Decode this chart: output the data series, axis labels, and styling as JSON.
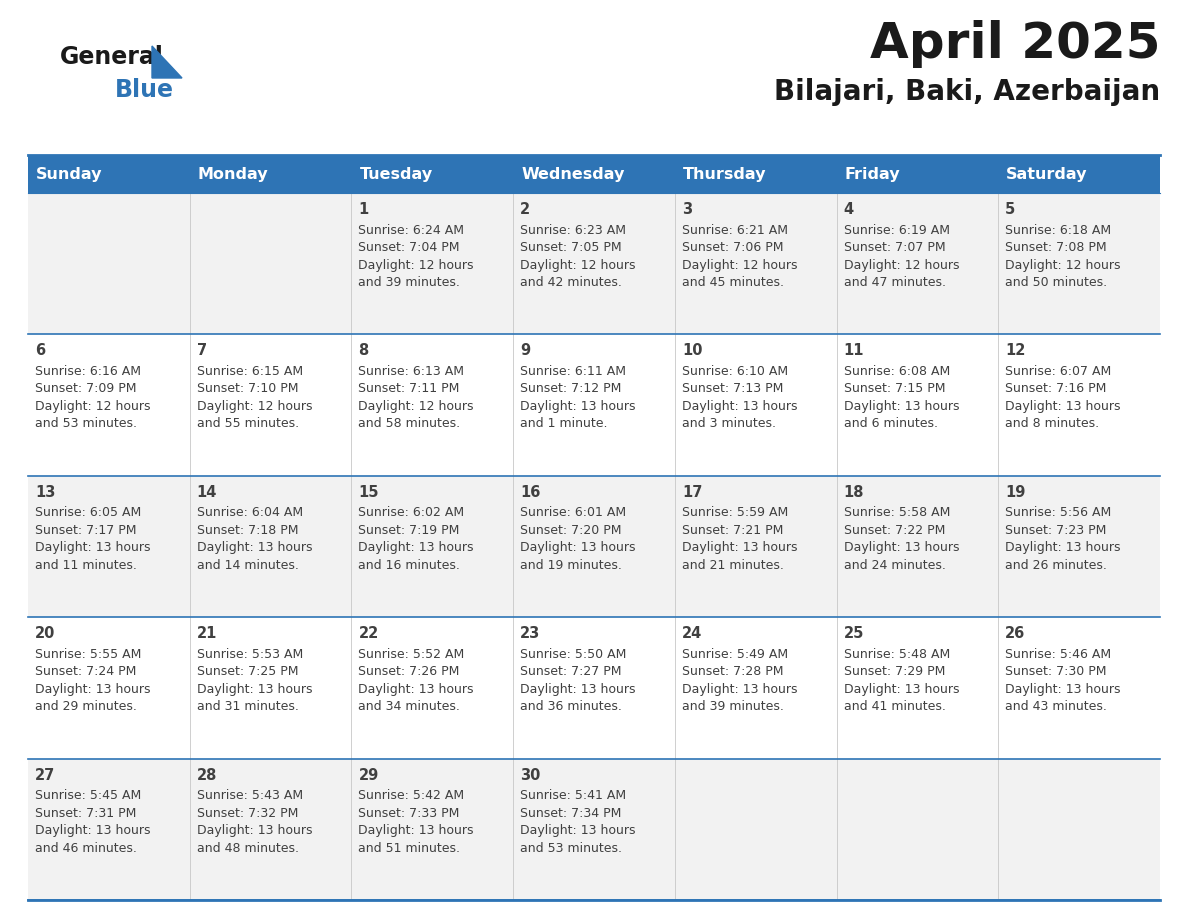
{
  "title": "April 2025",
  "subtitle": "Bilajari, Baki, Azerbaijan",
  "header_bg": "#2E74B5",
  "header_text_color": "#FFFFFF",
  "cell_bg_odd": "#F2F2F2",
  "cell_bg_even": "#FFFFFF",
  "border_color": "#2E74B5",
  "text_color": "#404040",
  "logo_general_color": "#1a1a1a",
  "logo_blue_color": "#2E74B5",
  "days_of_week": [
    "Sunday",
    "Monday",
    "Tuesday",
    "Wednesday",
    "Thursday",
    "Friday",
    "Saturday"
  ],
  "calendar_data": [
    [
      {
        "day": "",
        "sunrise": "",
        "sunset": "",
        "daylight": ""
      },
      {
        "day": "",
        "sunrise": "",
        "sunset": "",
        "daylight": ""
      },
      {
        "day": "1",
        "sunrise": "Sunrise: 6:24 AM",
        "sunset": "Sunset: 7:04 PM",
        "daylight": "Daylight: 12 hours\nand 39 minutes."
      },
      {
        "day": "2",
        "sunrise": "Sunrise: 6:23 AM",
        "sunset": "Sunset: 7:05 PM",
        "daylight": "Daylight: 12 hours\nand 42 minutes."
      },
      {
        "day": "3",
        "sunrise": "Sunrise: 6:21 AM",
        "sunset": "Sunset: 7:06 PM",
        "daylight": "Daylight: 12 hours\nand 45 minutes."
      },
      {
        "day": "4",
        "sunrise": "Sunrise: 6:19 AM",
        "sunset": "Sunset: 7:07 PM",
        "daylight": "Daylight: 12 hours\nand 47 minutes."
      },
      {
        "day": "5",
        "sunrise": "Sunrise: 6:18 AM",
        "sunset": "Sunset: 7:08 PM",
        "daylight": "Daylight: 12 hours\nand 50 minutes."
      }
    ],
    [
      {
        "day": "6",
        "sunrise": "Sunrise: 6:16 AM",
        "sunset": "Sunset: 7:09 PM",
        "daylight": "Daylight: 12 hours\nand 53 minutes."
      },
      {
        "day": "7",
        "sunrise": "Sunrise: 6:15 AM",
        "sunset": "Sunset: 7:10 PM",
        "daylight": "Daylight: 12 hours\nand 55 minutes."
      },
      {
        "day": "8",
        "sunrise": "Sunrise: 6:13 AM",
        "sunset": "Sunset: 7:11 PM",
        "daylight": "Daylight: 12 hours\nand 58 minutes."
      },
      {
        "day": "9",
        "sunrise": "Sunrise: 6:11 AM",
        "sunset": "Sunset: 7:12 PM",
        "daylight": "Daylight: 13 hours\nand 1 minute."
      },
      {
        "day": "10",
        "sunrise": "Sunrise: 6:10 AM",
        "sunset": "Sunset: 7:13 PM",
        "daylight": "Daylight: 13 hours\nand 3 minutes."
      },
      {
        "day": "11",
        "sunrise": "Sunrise: 6:08 AM",
        "sunset": "Sunset: 7:15 PM",
        "daylight": "Daylight: 13 hours\nand 6 minutes."
      },
      {
        "day": "12",
        "sunrise": "Sunrise: 6:07 AM",
        "sunset": "Sunset: 7:16 PM",
        "daylight": "Daylight: 13 hours\nand 8 minutes."
      }
    ],
    [
      {
        "day": "13",
        "sunrise": "Sunrise: 6:05 AM",
        "sunset": "Sunset: 7:17 PM",
        "daylight": "Daylight: 13 hours\nand 11 minutes."
      },
      {
        "day": "14",
        "sunrise": "Sunrise: 6:04 AM",
        "sunset": "Sunset: 7:18 PM",
        "daylight": "Daylight: 13 hours\nand 14 minutes."
      },
      {
        "day": "15",
        "sunrise": "Sunrise: 6:02 AM",
        "sunset": "Sunset: 7:19 PM",
        "daylight": "Daylight: 13 hours\nand 16 minutes."
      },
      {
        "day": "16",
        "sunrise": "Sunrise: 6:01 AM",
        "sunset": "Sunset: 7:20 PM",
        "daylight": "Daylight: 13 hours\nand 19 minutes."
      },
      {
        "day": "17",
        "sunrise": "Sunrise: 5:59 AM",
        "sunset": "Sunset: 7:21 PM",
        "daylight": "Daylight: 13 hours\nand 21 minutes."
      },
      {
        "day": "18",
        "sunrise": "Sunrise: 5:58 AM",
        "sunset": "Sunset: 7:22 PM",
        "daylight": "Daylight: 13 hours\nand 24 minutes."
      },
      {
        "day": "19",
        "sunrise": "Sunrise: 5:56 AM",
        "sunset": "Sunset: 7:23 PM",
        "daylight": "Daylight: 13 hours\nand 26 minutes."
      }
    ],
    [
      {
        "day": "20",
        "sunrise": "Sunrise: 5:55 AM",
        "sunset": "Sunset: 7:24 PM",
        "daylight": "Daylight: 13 hours\nand 29 minutes."
      },
      {
        "day": "21",
        "sunrise": "Sunrise: 5:53 AM",
        "sunset": "Sunset: 7:25 PM",
        "daylight": "Daylight: 13 hours\nand 31 minutes."
      },
      {
        "day": "22",
        "sunrise": "Sunrise: 5:52 AM",
        "sunset": "Sunset: 7:26 PM",
        "daylight": "Daylight: 13 hours\nand 34 minutes."
      },
      {
        "day": "23",
        "sunrise": "Sunrise: 5:50 AM",
        "sunset": "Sunset: 7:27 PM",
        "daylight": "Daylight: 13 hours\nand 36 minutes."
      },
      {
        "day": "24",
        "sunrise": "Sunrise: 5:49 AM",
        "sunset": "Sunset: 7:28 PM",
        "daylight": "Daylight: 13 hours\nand 39 minutes."
      },
      {
        "day": "25",
        "sunrise": "Sunrise: 5:48 AM",
        "sunset": "Sunset: 7:29 PM",
        "daylight": "Daylight: 13 hours\nand 41 minutes."
      },
      {
        "day": "26",
        "sunrise": "Sunrise: 5:46 AM",
        "sunset": "Sunset: 7:30 PM",
        "daylight": "Daylight: 13 hours\nand 43 minutes."
      }
    ],
    [
      {
        "day": "27",
        "sunrise": "Sunrise: 5:45 AM",
        "sunset": "Sunset: 7:31 PM",
        "daylight": "Daylight: 13 hours\nand 46 minutes."
      },
      {
        "day": "28",
        "sunrise": "Sunrise: 5:43 AM",
        "sunset": "Sunset: 7:32 PM",
        "daylight": "Daylight: 13 hours\nand 48 minutes."
      },
      {
        "day": "29",
        "sunrise": "Sunrise: 5:42 AM",
        "sunset": "Sunset: 7:33 PM",
        "daylight": "Daylight: 13 hours\nand 51 minutes."
      },
      {
        "day": "30",
        "sunrise": "Sunrise: 5:41 AM",
        "sunset": "Sunset: 7:34 PM",
        "daylight": "Daylight: 13 hours\nand 53 minutes."
      },
      {
        "day": "",
        "sunrise": "",
        "sunset": "",
        "daylight": ""
      },
      {
        "day": "",
        "sunrise": "",
        "sunset": "",
        "daylight": ""
      },
      {
        "day": "",
        "sunrise": "",
        "sunset": "",
        "daylight": ""
      }
    ]
  ]
}
